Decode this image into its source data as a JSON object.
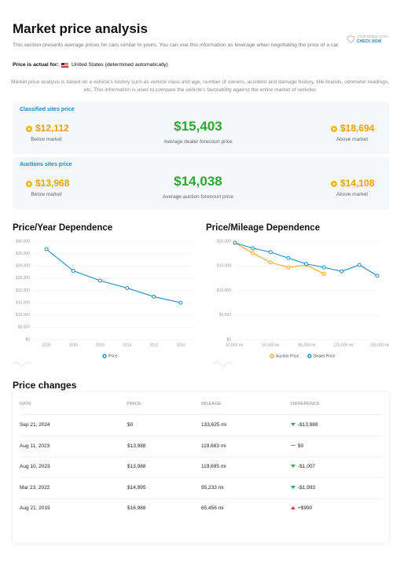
{
  "header": {
    "title": "Market price analysis",
    "description": "This section presents average prices for cars similar to yours. You can use this information as leverage when negotiating the price of a car.",
    "badge": {
      "line1": "CONFIRMED DATA",
      "line2": "CHECK NOW"
    }
  },
  "location": {
    "label": "Price is actual for:",
    "value": "United States (determined automatically)"
  },
  "note": "Market price analysis is based on a vehicle's history such as vehicle class and age, number of owners, accident and damage history, title brands, odometer readings, etc. This information is used to compare the vehicle's favorability against the entire market of vehicles",
  "price_groups": [
    {
      "title": "Classified sites price",
      "low": {
        "price": "$12,112",
        "label": "Below market"
      },
      "average": {
        "price": "$15,403",
        "label": "Average dealer forecourt price"
      },
      "high": {
        "price": "$18,694",
        "label": "Above market"
      }
    },
    {
      "title": "Auctions sites price",
      "low": {
        "price": "$13,968",
        "label": "Below market"
      },
      "average": {
        "price": "$14,038",
        "label": "Average auction forecourt price"
      },
      "high": {
        "price": "$14,108",
        "label": "Above market"
      }
    }
  ],
  "chart_data": [
    {
      "type": "line",
      "title": "Price/Year Dependence",
      "categories": [
        "2020",
        "2018",
        "2016",
        "2014",
        "2012",
        "2010"
      ],
      "series": [
        {
          "name": "Price",
          "color": "#1e8bc3",
          "values": [
            36800,
            28000,
            24000,
            21000,
            17500,
            15000
          ]
        }
      ],
      "ylim": [
        0,
        40000
      ],
      "yticks": [
        {
          "value": 0,
          "label": "$0"
        },
        {
          "value": 5000,
          "label": "$5,000"
        },
        {
          "value": 10000,
          "label": "$10,000"
        },
        {
          "value": 15000,
          "label": "$15,000"
        },
        {
          "value": 20000,
          "label": "$20,000"
        },
        {
          "value": 25000,
          "label": "$25,000"
        },
        {
          "value": 30000,
          "label": "$30,000"
        },
        {
          "value": 35000,
          "label": "$35,000"
        },
        {
          "value": 40000,
          "label": "$40,000"
        }
      ],
      "grid": true
    },
    {
      "type": "line",
      "title": "Price/Mileage Dependence",
      "xlim": [
        15000,
        155000
      ],
      "xticks": [
        {
          "value": 15000,
          "label": "15,000 mi"
        },
        {
          "value": 50000,
          "label": "50,000 mi"
        },
        {
          "value": 85000,
          "label": "85,000 mi"
        },
        {
          "value": 120000,
          "label": "120,000 mi"
        },
        {
          "value": 155000,
          "label": "155,000 mi"
        }
      ],
      "series": [
        {
          "name": "Auction Price",
          "color": "#f5a623",
          "x": [
            15700,
            32900,
            50000,
            67100,
            84300,
            101400
          ],
          "values": [
            19700,
            17600,
            15700,
            14700,
            15200,
            13400
          ]
        },
        {
          "name": "Dealer Price",
          "color": "#1e8bc3",
          "x": [
            15700,
            32900,
            50000,
            67100,
            84300,
            101400,
            118500,
            135600,
            152800
          ],
          "values": [
            19700,
            18600,
            17800,
            16600,
            15400,
            14700,
            13900,
            15200,
            13000
          ]
        }
      ],
      "ylim": [
        0,
        20000
      ],
      "yticks": [
        {
          "value": 0,
          "label": "$0"
        },
        {
          "value": 5000,
          "label": "$5,000"
        },
        {
          "value": 10000,
          "label": "$10,000"
        },
        {
          "value": 15000,
          "label": "$15,000"
        },
        {
          "value": 20000,
          "label": "$20,000"
        }
      ],
      "grid": true
    }
  ],
  "price_changes": {
    "title": "Price changes",
    "columns": [
      "DATE",
      "PRICE",
      "MILEAGE",
      "DIFFERENCE"
    ],
    "rows": [
      [
        "Sep 21, 2024",
        "$0",
        "133,625 mi",
        "-$13,988"
      ],
      [
        "Aug 11, 2023",
        "$13,988",
        "119,683 mi",
        "$0"
      ],
      [
        "Aug 10, 2023",
        "$13,988",
        "119,695 mi",
        "-$1,007"
      ],
      [
        "Mar 23, 2022",
        "$14,995",
        "95,233 mi",
        "-$1,993"
      ],
      [
        "Aug 21, 2019",
        "$16,988",
        "65,456 mi",
        "+$990"
      ]
    ]
  }
}
